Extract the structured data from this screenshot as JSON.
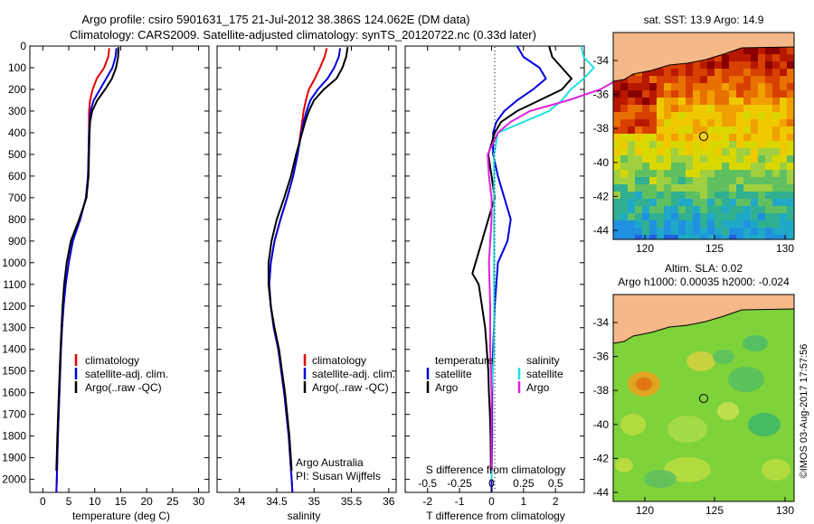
{
  "header": {
    "title_line1": "Argo profile: csiro 5901631_175 21-Jul-2012 38.386S 124.062E (DM data)",
    "title_line2": "Climatology: CARS2009. Satellite-adjusted climatology: synTS_20120722.nc (0.33d later)"
  },
  "colors": {
    "climatology": "#e00000",
    "satellite": "#0000e0",
    "argo": "#000000",
    "sat_salinity": "#22e0e0",
    "argo_salinity": "#e020e0",
    "land": "#f5b888"
  },
  "depth_axis": {
    "ticks": [
      0,
      100,
      200,
      300,
      400,
      500,
      600,
      700,
      800,
      900,
      1000,
      1100,
      1200,
      1300,
      1400,
      1500,
      1600,
      1700,
      1800,
      1900,
      2000
    ],
    "range": [
      0,
      2060
    ]
  },
  "chart_data": [
    {
      "type": "line",
      "id": "temperature",
      "xlabel": "temperature (deg C)",
      "xticks": [
        0,
        5,
        10,
        15,
        20,
        25,
        30
      ],
      "xlim": [
        -2.5,
        32
      ],
      "ylim": [
        0,
        2060
      ],
      "legend": [
        "climatology",
        "satellite-adj. clim.",
        "Argo(..raw -QC)"
      ],
      "series": [
        {
          "key": "climatology",
          "depth": [
            10,
            50,
            100,
            150,
            200,
            250,
            300,
            350,
            400,
            500,
            600,
            700,
            800,
            900,
            1000,
            1100,
            1200,
            1300,
            1400,
            1600,
            1800,
            2000,
            2060
          ],
          "value": [
            12.8,
            12.6,
            11.8,
            10.4,
            9.6,
            9.1,
            8.9,
            8.9,
            8.9,
            8.8,
            8.7,
            8.3,
            7.2,
            5.7,
            5.0,
            4.4,
            4.0,
            3.7,
            3.5,
            3.2,
            2.9,
            2.7,
            2.6
          ]
        },
        {
          "key": "satellite",
          "depth": [
            10,
            50,
            100,
            150,
            200,
            250,
            300,
            350,
            400,
            500,
            600,
            700,
            800,
            900,
            1000,
            1100,
            1200,
            1300,
            1400,
            1600,
            1800,
            2000,
            2060
          ],
          "value": [
            14.2,
            14.0,
            13.4,
            12.2,
            11.0,
            9.8,
            9.2,
            9.0,
            8.9,
            8.8,
            8.7,
            8.3,
            7.2,
            5.8,
            5.0,
            4.4,
            4.0,
            3.7,
            3.5,
            3.2,
            2.9,
            2.7,
            2.6
          ]
        },
        {
          "key": "argo",
          "depth": [
            5,
            50,
            100,
            150,
            200,
            250,
            300,
            350,
            400,
            500,
            600,
            700,
            800,
            900,
            1000,
            1100,
            1200,
            1300,
            1400,
            1600,
            1800,
            1960
          ],
          "value": [
            14.6,
            14.5,
            14.1,
            13.3,
            12.0,
            10.5,
            9.5,
            9.1,
            9.0,
            8.9,
            8.8,
            8.4,
            7.0,
            5.4,
            4.6,
            4.1,
            3.8,
            3.6,
            3.4,
            3.1,
            2.8,
            2.6
          ]
        }
      ]
    },
    {
      "type": "line",
      "id": "salinity",
      "xlabel": "salinity",
      "xticks": [
        34,
        34.5,
        35,
        35.5,
        36
      ],
      "xlim": [
        33.7,
        36.1
      ],
      "ylim": [
        0,
        2060
      ],
      "legend": [
        "climatology",
        "satellite-adj. clim.",
        "Argo(..raw -QC)"
      ],
      "series": [
        {
          "key": "climatology",
          "depth": [
            10,
            50,
            100,
            150,
            200,
            250,
            300,
            350,
            400,
            500,
            600,
            700,
            800,
            900,
            1000,
            1100,
            1200,
            1300,
            1400,
            1600,
            1800,
            2000,
            2060
          ],
          "value": [
            35.17,
            35.14,
            35.08,
            35.01,
            34.93,
            34.89,
            34.86,
            34.84,
            34.82,
            34.78,
            34.72,
            34.64,
            34.55,
            34.47,
            34.42,
            34.4,
            34.42,
            34.46,
            34.52,
            34.6,
            34.66,
            34.7,
            34.71
          ]
        },
        {
          "key": "satellite",
          "depth": [
            10,
            50,
            100,
            150,
            200,
            250,
            300,
            350,
            400,
            500,
            600,
            700,
            800,
            900,
            1000,
            1100,
            1200,
            1300,
            1400,
            1600,
            1800,
            2000,
            2060
          ],
          "value": [
            35.35,
            35.33,
            35.27,
            35.18,
            35.05,
            34.95,
            34.9,
            34.86,
            34.83,
            34.78,
            34.72,
            34.64,
            34.55,
            34.47,
            34.42,
            34.4,
            34.42,
            34.46,
            34.52,
            34.6,
            34.66,
            34.7,
            34.71
          ]
        },
        {
          "key": "argo",
          "depth": [
            5,
            50,
            100,
            150,
            200,
            250,
            300,
            350,
            400,
            500,
            600,
            700,
            800,
            900,
            1000,
            1100,
            1200,
            1300,
            1400,
            1600,
            1800,
            1960
          ],
          "value": [
            35.45,
            35.43,
            35.38,
            35.3,
            35.13,
            35.0,
            34.93,
            34.88,
            34.84,
            34.76,
            34.69,
            34.6,
            34.5,
            34.43,
            34.39,
            34.39,
            34.42,
            34.47,
            34.53,
            34.61,
            34.67,
            34.7
          ]
        }
      ]
    },
    {
      "type": "line",
      "id": "difference",
      "xlabel": "T difference from climatology",
      "xlabel_top": "S difference from climatology",
      "xticks": [
        -2,
        -1,
        0,
        1,
        2
      ],
      "xticks_top": [
        -0.5,
        -0.25,
        0,
        0.25,
        0.5
      ],
      "xlim": [
        -2.7,
        2.9
      ],
      "ylim": [
        0,
        2060
      ],
      "legend_temperature_title": "temperature",
      "legend_salinity_title": "salinity",
      "legend_labels": [
        "satellite",
        "Argo",
        "satellite",
        "Argo"
      ],
      "series": [
        {
          "key": "sat_temperature",
          "depth": [
            0,
            50,
            100,
            150,
            200,
            250,
            300,
            350,
            400,
            500,
            600,
            700,
            800,
            900,
            1000,
            1200,
            1400,
            1600,
            1800,
            2000,
            2060
          ],
          "value": [
            0.8,
            1.0,
            1.5,
            1.7,
            1.3,
            0.8,
            0.4,
            0.15,
            0.05,
            0.05,
            0.2,
            0.4,
            0.6,
            0.5,
            0.2,
            0.1,
            0.05,
            0.02,
            0.02,
            0.0,
            0.0
          ]
        },
        {
          "key": "argo_temperature",
          "depth": [
            0,
            50,
            100,
            150,
            200,
            250,
            300,
            350,
            400,
            500,
            600,
            700,
            800,
            900,
            1000,
            1050,
            1100,
            1200,
            1300,
            1400,
            1500,
            1600,
            1700,
            1800,
            1960
          ],
          "value": [
            1.8,
            1.9,
            2.2,
            2.5,
            2.2,
            1.5,
            0.8,
            0.3,
            0.1,
            -0.1,
            0.0,
            0.1,
            -0.1,
            -0.3,
            -0.5,
            -0.6,
            -0.4,
            -0.3,
            -0.2,
            -0.15,
            -0.1,
            -0.08,
            -0.05,
            -0.03,
            -0.02
          ]
        },
        {
          "key": "sat_salinity",
          "depth": [
            0,
            50,
            100,
            150,
            200,
            250,
            300,
            350,
            400,
            500,
            600,
            700,
            800,
            1000,
            1200,
            1400,
            1600,
            1800,
            2000
          ],
          "value": [
            0.7,
            0.72,
            0.8,
            0.72,
            0.62,
            0.55,
            0.45,
            0.25,
            0.05,
            0.02,
            0.02,
            0.02,
            0.02,
            0.02,
            0.02,
            0.02,
            0.0,
            0.0,
            0.0
          ]
        },
        {
          "key": "argo_salinity",
          "depth": [
            0,
            50,
            100,
            150,
            200,
            250,
            300,
            350,
            400,
            500,
            600,
            700,
            800,
            1000,
            1200,
            1400,
            1600,
            1800,
            1960
          ],
          "value": [
            1.4,
            1.35,
            1.25,
            1.0,
            0.85,
            0.6,
            0.3,
            0.15,
            0.05,
            -0.03,
            -0.02,
            0.0,
            0.0,
            -0.02,
            -0.01,
            -0.01,
            0.0,
            0.0,
            0.0
          ]
        }
      ]
    }
  ],
  "map_sst": {
    "title": "sat. SST: 13.9 Argo: 14.9",
    "lat_ticks": [
      "-34",
      "-36",
      "-38",
      "-40",
      "-42",
      "-44"
    ],
    "lon_ticks": [
      "120",
      "125",
      "130"
    ],
    "float_lat": -38.386,
    "float_lon": 124.062
  },
  "map_sla": {
    "title_line1": "Altim. SLA: 0.02",
    "title_line2": "Argo h1000: 0.00035 h2000: -0.024",
    "lat_ticks": [
      "-34",
      "-36",
      "-38",
      "-40",
      "-42",
      "-44"
    ],
    "lon_ticks": [
      "120",
      "125",
      "130"
    ],
    "float_lat": -38.386,
    "float_lon": 124.062
  },
  "annotation": {
    "argo_australia": "Argo Australia",
    "pi": "PI: Susan Wijffels",
    "credit": "©IMOS 03-Aug-2017 17:57:56"
  }
}
